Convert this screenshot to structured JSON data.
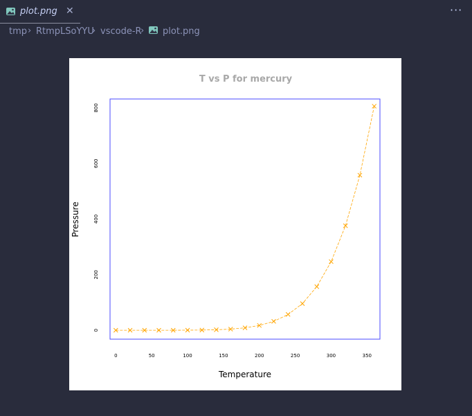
{
  "tab": {
    "label": "plot.png",
    "icon": "image-file-icon",
    "close_icon": "close-icon"
  },
  "toolbar": {
    "more_icon": "ellipsis-icon"
  },
  "breadcrumb": {
    "items": [
      "tmp",
      "RtmpLSoYYU",
      "vscode-R",
      "plot.png"
    ]
  },
  "colors": {
    "background": "#292c3c",
    "accent": "#FFA500",
    "plot_box": "#4a4aff"
  },
  "chart_data": {
    "type": "line",
    "title": "T vs P for mercury",
    "xlabel": "Temperature",
    "ylabel": "Pressure",
    "xlim": [
      -8,
      368
    ],
    "ylim": [
      -32,
      832
    ],
    "x_ticks": [
      0,
      50,
      100,
      150,
      200,
      250,
      300,
      350
    ],
    "y_ticks": [
      0,
      200,
      400,
      600,
      800
    ],
    "grid": false,
    "marker": "x",
    "line_style": "dashed",
    "series": [
      {
        "color": "#FFA500",
        "x": [
          0,
          20,
          40,
          60,
          80,
          100,
          120,
          140,
          160,
          180,
          200,
          220,
          240,
          260,
          280,
          300,
          320,
          340,
          360
        ],
        "y": [
          0.0002,
          0.0012,
          0.006,
          0.03,
          0.09,
          0.27,
          0.75,
          1.85,
          4.2,
          8.8,
          17.3,
          32.1,
          57.0,
          96.0,
          157.0,
          247.0,
          376.0,
          558.0,
          806.0
        ]
      }
    ]
  }
}
